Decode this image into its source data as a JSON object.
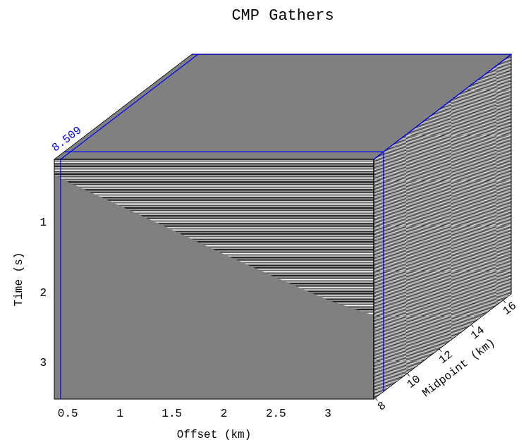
{
  "chart_data": {
    "type": "cube",
    "title": "CMP Gathers",
    "x_label": "Offset (km)",
    "y_label": "Time (s)",
    "z_label": "Midpoint (km)",
    "xlim": [
      0.37,
      3.44
    ],
    "xticks": [
      0.5,
      1,
      1.5,
      2,
      2.5,
      3
    ],
    "ylim": [
      0.1,
      3.51
    ],
    "yticks": [
      1,
      2,
      3
    ],
    "zlim": [
      7.9,
      16.5
    ],
    "zticks": [
      8,
      10,
      12,
      14,
      16
    ],
    "grid": false,
    "mute": {
      "offset": [
        0.37,
        0.5,
        1,
        1.5,
        2,
        2.5,
        3,
        3.44
      ],
      "time": [
        0.32,
        0.42,
        0.76,
        1.1,
        1.45,
        1.78,
        2.1,
        2.32
      ]
    },
    "offset_slice": 0.43,
    "midpoint_slice": 8.509,
    "color": "#0000ff"
  }
}
